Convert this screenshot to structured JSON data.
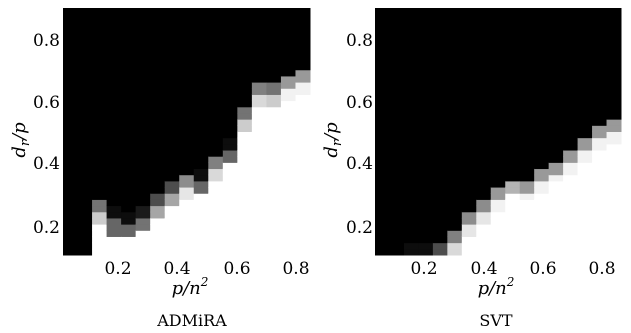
{
  "chart_data": [
    {
      "type": "heatmap",
      "title": "ADMiRA",
      "xlabel": "p/n²",
      "ylabel": "d_r/p",
      "xlim": [
        0.0,
        0.85
      ],
      "ylim": [
        0.1,
        0.9
      ],
      "xticks": [
        "0.2",
        "0.4",
        "0.6",
        "0.8"
      ],
      "yticks": [
        "0.2",
        "0.4",
        "0.6",
        "0.8"
      ],
      "color_scale": "grayscale: black = 0 (failure), white = 1 (success)",
      "grid_x": 0.05,
      "grid_y": 0.02,
      "boundary": [
        {
          "x": 0.15,
          "y": 0.26,
          "gray": 0.45
        },
        {
          "x": 0.2,
          "y": 0.2,
          "gray": 0.05
        },
        {
          "x": 0.3,
          "y": 0.24,
          "gray": 0.1
        },
        {
          "x": 0.35,
          "y": 0.3,
          "gray": 0.3
        },
        {
          "x": 0.4,
          "y": 0.32,
          "gray": 0.55
        },
        {
          "x": 0.45,
          "y": 0.34,
          "gray": 0.05
        },
        {
          "x": 0.5,
          "y": 0.38,
          "gray": 0.5
        },
        {
          "x": 0.55,
          "y": 0.42,
          "gray": 0.05
        },
        {
          "x": 0.6,
          "y": 0.5,
          "gray": 0.45
        },
        {
          "x": 0.65,
          "y": 0.64,
          "gray": 0.95
        },
        {
          "x": 0.7,
          "y": 0.64,
          "gray": 0.5
        },
        {
          "x": 0.75,
          "y": 0.66,
          "gray": 0.45
        },
        {
          "x": 0.8,
          "y": 0.68,
          "gray": 0.6
        }
      ]
    },
    {
      "type": "heatmap",
      "title": "SVT",
      "xlabel": "p/n²",
      "ylabel": "d_r/p",
      "xlim": [
        0.0,
        0.85
      ],
      "ylim": [
        0.1,
        0.9
      ],
      "xticks": [
        "0.2",
        "0.4",
        "0.6",
        "0.8"
      ],
      "yticks": [
        "0.2",
        "0.4",
        "0.6",
        "0.8"
      ],
      "color_scale": "grayscale: black = 0 (failure), white = 1 (success)",
      "grid_x": 0.05,
      "grid_y": 0.02,
      "boundary": [
        {
          "x": 0.15,
          "y": 0.12,
          "gray": 0.05
        },
        {
          "x": 0.25,
          "y": 0.12,
          "gray": 0.3
        },
        {
          "x": 0.3,
          "y": 0.2,
          "gray": 0.5
        },
        {
          "x": 0.35,
          "y": 0.24,
          "gray": 0.55
        },
        {
          "x": 0.4,
          "y": 0.28,
          "gray": 0.6
        },
        {
          "x": 0.45,
          "y": 0.3,
          "gray": 0.7
        },
        {
          "x": 0.5,
          "y": 0.32,
          "gray": 0.6
        },
        {
          "x": 0.55,
          "y": 0.34,
          "gray": 0.6
        },
        {
          "x": 0.6,
          "y": 0.38,
          "gray": 0.6
        },
        {
          "x": 0.65,
          "y": 0.4,
          "gray": 0.6
        },
        {
          "x": 0.7,
          "y": 0.44,
          "gray": 0.6
        },
        {
          "x": 0.75,
          "y": 0.48,
          "gray": 0.6
        },
        {
          "x": 0.8,
          "y": 0.52,
          "gray": 0.6
        }
      ]
    }
  ]
}
